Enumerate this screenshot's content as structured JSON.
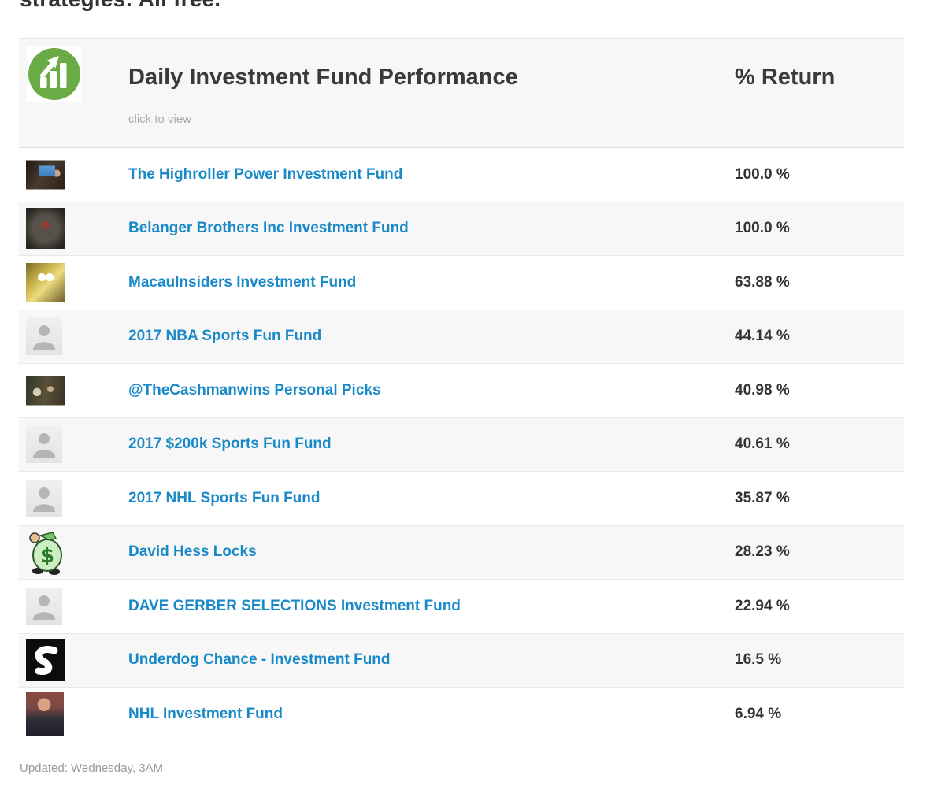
{
  "page": {
    "top_cropped_heading": "strategies: All free.",
    "footer": "Updated: Wednesday, 3AM"
  },
  "table": {
    "header": {
      "title": "Daily Investment Fund Performance",
      "subtitle": "click to view",
      "return_column_label": "% Return",
      "icon": "green-growth-chart-icon"
    },
    "colors": {
      "link_blue": "#1989c8",
      "icon_green": "#6aab45",
      "dark_text": "#333333",
      "header_background": "#f7f7f7"
    },
    "rows": [
      {
        "name": "The Highroller Power Investment Fund",
        "value": "100.0 %",
        "avatar": "casino-room-photo-avatar"
      },
      {
        "name": "Belanger Brothers Inc Investment Fund",
        "value": "100.0 %",
        "avatar": "dark-figure-photo-avatar"
      },
      {
        "name": "MacauInsiders Investment Fund",
        "value": "63.88 %",
        "avatar": "cartoon-character-avatar"
      },
      {
        "name": "2017 NBA Sports Fun Fund",
        "value": "44.14 %",
        "avatar": "default-person-avatar"
      },
      {
        "name": "@TheCashmanwins Personal Picks",
        "value": "40.98 %",
        "avatar": "group-photo-avatar"
      },
      {
        "name": "2017 $200k Sports Fun Fund",
        "value": "40.61 %",
        "avatar": "default-person-avatar"
      },
      {
        "name": "2017 NHL Sports Fun Fund",
        "value": "35.87 %",
        "avatar": "default-person-avatar"
      },
      {
        "name": "David Hess Locks",
        "value": "28.23 %",
        "avatar": "money-bag-cartoon-avatar"
      },
      {
        "name": "DAVE GERBER SELECTIONS Investment Fund",
        "value": "22.94 %",
        "avatar": "default-person-avatar"
      },
      {
        "name": "Underdog Chance - Investment Fund",
        "value": "16.5 %",
        "avatar": "black-logo-avatar"
      },
      {
        "name": "NHL Investment Fund",
        "value": "6.94 %",
        "avatar": "man-in-suit-photo-avatar"
      }
    ]
  }
}
